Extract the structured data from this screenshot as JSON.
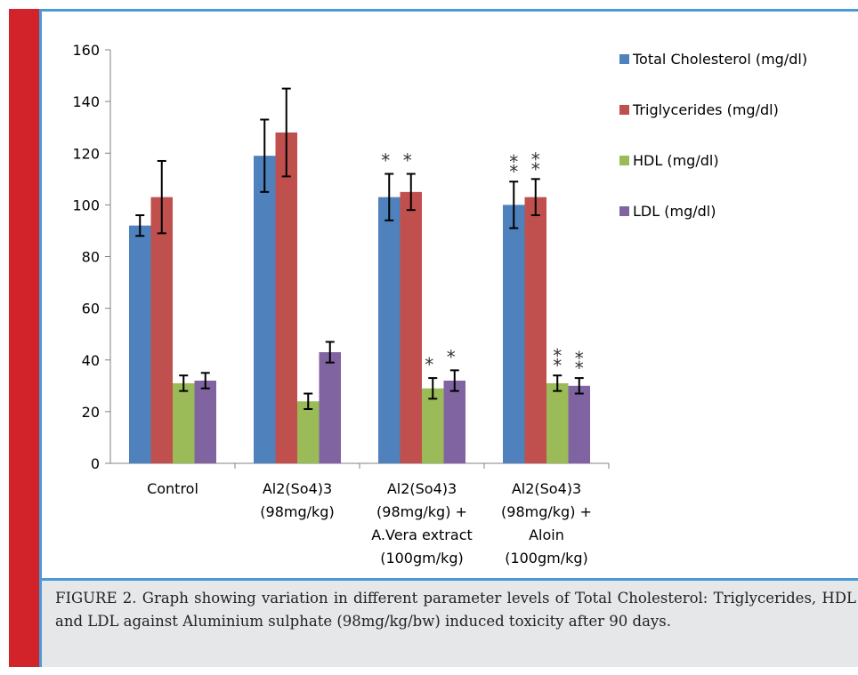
{
  "chart_data": {
    "type": "bar",
    "ylim": [
      0,
      160
    ],
    "yticks": [
      0,
      20,
      40,
      60,
      80,
      100,
      120,
      140,
      160
    ],
    "grid": false,
    "legend_position": "right",
    "categories": [
      [
        "Control"
      ],
      [
        "Al2(So4)3",
        "(98mg/kg)"
      ],
      [
        "Al2(So4)3",
        "(98mg/kg) +",
        "A.Vera extract",
        "(100gm/kg)"
      ],
      [
        "Al2(So4)3",
        "(98mg/kg) +",
        "Aloin",
        "(100gm/kg)"
      ]
    ],
    "series": [
      {
        "name": "Total Cholesterol (mg/dl)",
        "color": "#4f81bd",
        "values": [
          92,
          119,
          103,
          100
        ],
        "errors": [
          4,
          14,
          9,
          9
        ],
        "marks": [
          "",
          "",
          "*",
          "**"
        ]
      },
      {
        "name": "Triglycerides (mg/dl)",
        "color": "#c0504d",
        "values": [
          103,
          128,
          105,
          103
        ],
        "errors": [
          14,
          17,
          7,
          7
        ],
        "marks": [
          "",
          "",
          "*",
          "**"
        ]
      },
      {
        "name": "HDL (mg/dl)",
        "color": "#9bbb59",
        "values": [
          31,
          24,
          29,
          31
        ],
        "errors": [
          3,
          3,
          4,
          3
        ],
        "marks": [
          "",
          "",
          "*",
          "**"
        ]
      },
      {
        "name": "LDL (mg/dl)",
        "color": "#8064a2",
        "values": [
          32,
          43,
          32,
          30
        ],
        "errors": [
          3,
          4,
          4,
          3
        ],
        "marks": [
          "",
          "",
          "*",
          "**"
        ]
      }
    ]
  },
  "caption": "FIGURE 2. Graph showing variation in different parameter levels of Total Cholesterol: Triglycerides, HDL and LDL against Aluminium sulphate (98mg/kg/bw) induced toxicity after 90 days."
}
